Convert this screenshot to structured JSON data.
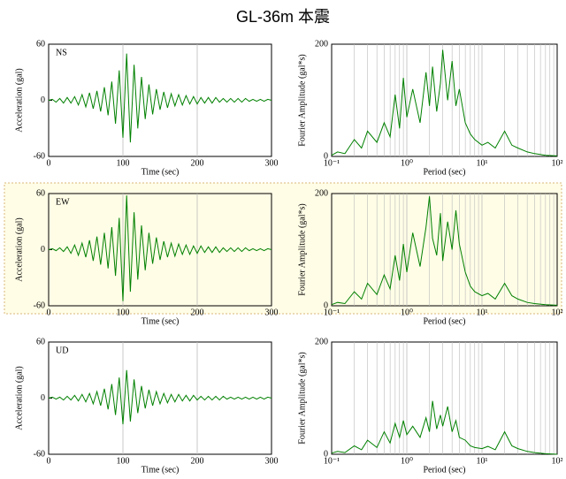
{
  "title": "GL-36m 本震",
  "chart_data": [
    {
      "type": "line",
      "tag": "NS",
      "xlabel": "Time (sec)",
      "ylabel": "Acceleration (gal)",
      "xlim": [
        0,
        300
      ],
      "xticks": [
        0,
        100,
        200,
        300
      ],
      "ylim": [
        -60,
        60
      ],
      "yticks": [
        -60,
        0,
        60
      ],
      "grid": true,
      "color": "#008000",
      "x": [
        0,
        5,
        10,
        15,
        20,
        25,
        30,
        35,
        40,
        45,
        50,
        55,
        60,
        65,
        70,
        75,
        80,
        85,
        90,
        95,
        100,
        105,
        110,
        115,
        120,
        125,
        130,
        135,
        140,
        145,
        150,
        155,
        160,
        165,
        170,
        175,
        180,
        185,
        190,
        195,
        200,
        205,
        210,
        215,
        220,
        225,
        230,
        235,
        240,
        245,
        250,
        255,
        260,
        265,
        270,
        275,
        280,
        285,
        290,
        295,
        300
      ],
      "values": [
        0,
        1,
        -2,
        2,
        -3,
        3,
        -3,
        4,
        -5,
        6,
        -7,
        8,
        -9,
        10,
        -12,
        14,
        -16,
        20,
        -25,
        32,
        -40,
        50,
        -45,
        38,
        -30,
        25,
        -20,
        17,
        -15,
        12,
        -10,
        9,
        -8,
        7,
        -6,
        6,
        -5,
        5,
        -4,
        4,
        -4,
        3,
        -3,
        3,
        -3,
        3,
        -2,
        2,
        -2,
        2,
        -2,
        2,
        -2,
        2,
        -1,
        1,
        -1,
        1,
        -1,
        1,
        0
      ]
    },
    {
      "type": "line",
      "xscale": "log",
      "xlabel": "Period (sec)",
      "ylabel": "Fourier Amplitude (gal*s)",
      "xlim": [
        0.1,
        100
      ],
      "xticks": [
        {
          "value": 0.1,
          "label": "10⁻¹"
        },
        {
          "value": 1,
          "label": "10⁰"
        },
        {
          "value": 10,
          "label": "10¹"
        },
        {
          "value": 100,
          "label": "10²"
        }
      ],
      "ylim": [
        0,
        200
      ],
      "yticks": [
        0,
        200
      ],
      "grid": true,
      "color": "#008000",
      "x": [
        0.1,
        0.12,
        0.15,
        0.2,
        0.25,
        0.3,
        0.4,
        0.5,
        0.6,
        0.7,
        0.8,
        0.9,
        1,
        1.2,
        1.5,
        1.8,
        2,
        2.2,
        2.5,
        2.8,
        3,
        3.5,
        4,
        4.5,
        5,
        6,
        7,
        8,
        10,
        12,
        15,
        20,
        25,
        30,
        40,
        50,
        70,
        100
      ],
      "values": [
        2,
        8,
        5,
        30,
        15,
        45,
        25,
        60,
        35,
        110,
        50,
        140,
        70,
        120,
        60,
        150,
        90,
        160,
        80,
        130,
        190,
        100,
        170,
        90,
        120,
        60,
        40,
        30,
        20,
        25,
        15,
        45,
        20,
        15,
        8,
        5,
        2,
        1
      ]
    },
    {
      "type": "line",
      "tag": "EW",
      "xlabel": "Time (sec)",
      "ylabel": "Acceleration (gal)",
      "xlim": [
        0,
        300
      ],
      "xticks": [
        0,
        100,
        200,
        300
      ],
      "ylim": [
        -60,
        60
      ],
      "yticks": [
        -60,
        0,
        60
      ],
      "grid": true,
      "color": "#008000",
      "x": [
        0,
        5,
        10,
        15,
        20,
        25,
        30,
        35,
        40,
        45,
        50,
        55,
        60,
        65,
        70,
        75,
        80,
        85,
        90,
        95,
        100,
        105,
        110,
        115,
        120,
        125,
        130,
        135,
        140,
        145,
        150,
        155,
        160,
        165,
        170,
        175,
        180,
        185,
        190,
        195,
        200,
        205,
        210,
        215,
        220,
        225,
        230,
        235,
        240,
        245,
        250,
        255,
        260,
        265,
        270,
        275,
        280,
        285,
        290,
        295,
        300
      ],
      "values": [
        0,
        1,
        -1,
        2,
        -2,
        3,
        -4,
        5,
        -6,
        7,
        -8,
        10,
        -12,
        14,
        -16,
        18,
        -20,
        24,
        -28,
        34,
        -55,
        58,
        -45,
        40,
        -32,
        26,
        -22,
        18,
        -15,
        13,
        -11,
        9,
        -8,
        7,
        -7,
        6,
        -5,
        5,
        -5,
        4,
        -4,
        4,
        -3,
        3,
        -3,
        3,
        -3,
        2,
        -2,
        2,
        -2,
        2,
        -2,
        2,
        -1,
        1,
        -1,
        1,
        -1,
        1,
        0
      ]
    },
    {
      "type": "line",
      "xscale": "log",
      "xlabel": "Period (sec)",
      "ylabel": "Fourier Amplitude (gal*s)",
      "xlim": [
        0.1,
        100
      ],
      "xticks": [
        {
          "value": 0.1,
          "label": "10⁻¹"
        },
        {
          "value": 1,
          "label": "10⁰"
        },
        {
          "value": 10,
          "label": "10¹"
        },
        {
          "value": 100,
          "label": "10²"
        }
      ],
      "ylim": [
        0,
        200
      ],
      "yticks": [
        0,
        200
      ],
      "grid": true,
      "color": "#008000",
      "x": [
        0.1,
        0.12,
        0.15,
        0.2,
        0.25,
        0.3,
        0.4,
        0.5,
        0.6,
        0.7,
        0.8,
        0.9,
        1,
        1.2,
        1.5,
        1.8,
        2,
        2.2,
        2.5,
        2.8,
        3,
        3.5,
        4,
        4.5,
        5,
        6,
        7,
        8,
        10,
        12,
        15,
        20,
        25,
        30,
        40,
        50,
        70,
        100
      ],
      "values": [
        2,
        6,
        4,
        25,
        12,
        40,
        20,
        55,
        30,
        90,
        45,
        110,
        60,
        130,
        70,
        140,
        195,
        120,
        90,
        165,
        80,
        150,
        100,
        170,
        110,
        60,
        35,
        25,
        18,
        22,
        12,
        40,
        18,
        12,
        6,
        4,
        2,
        1
      ]
    },
    {
      "type": "line",
      "tag": "UD",
      "xlabel": "Time (sec)",
      "ylabel": "Acceleration (gal)",
      "xlim": [
        0,
        300
      ],
      "xticks": [
        0,
        100,
        200,
        300
      ],
      "ylim": [
        -60,
        60
      ],
      "yticks": [
        -60,
        0,
        60
      ],
      "grid": true,
      "color": "#008000",
      "x": [
        0,
        5,
        10,
        15,
        20,
        25,
        30,
        35,
        40,
        45,
        50,
        55,
        60,
        65,
        70,
        75,
        80,
        85,
        90,
        95,
        100,
        105,
        110,
        115,
        120,
        125,
        130,
        135,
        140,
        145,
        150,
        155,
        160,
        165,
        170,
        175,
        180,
        185,
        190,
        195,
        200,
        205,
        210,
        215,
        220,
        225,
        230,
        235,
        240,
        245,
        250,
        255,
        260,
        265,
        270,
        275,
        280,
        285,
        290,
        295,
        300
      ],
      "values": [
        0,
        1,
        -1,
        1,
        -2,
        2,
        -2,
        3,
        -3,
        4,
        -4,
        5,
        -6,
        7,
        -8,
        10,
        -12,
        15,
        -18,
        22,
        -28,
        30,
        -25,
        20,
        -16,
        13,
        -11,
        9,
        -8,
        7,
        -6,
        5,
        -5,
        4,
        -4,
        4,
        -3,
        3,
        -3,
        3,
        -2,
        2,
        -2,
        2,
        -2,
        2,
        -2,
        2,
        -1,
        1,
        -1,
        1,
        -1,
        1,
        -1,
        1,
        -1,
        1,
        -1,
        1,
        0
      ]
    },
    {
      "type": "line",
      "xscale": "log",
      "xlabel": "Period (sec)",
      "ylabel": "Fourier Amplitude (gal*s)",
      "xlim": [
        0.1,
        100
      ],
      "xticks": [
        {
          "value": 0.1,
          "label": "10⁻¹"
        },
        {
          "value": 1,
          "label": "10⁰"
        },
        {
          "value": 10,
          "label": "10¹"
        },
        {
          "value": 100,
          "label": "10²"
        }
      ],
      "ylim": [
        0,
        200
      ],
      "yticks": [
        0,
        200
      ],
      "grid": true,
      "color": "#008000",
      "x": [
        0.1,
        0.12,
        0.15,
        0.2,
        0.25,
        0.3,
        0.4,
        0.5,
        0.6,
        0.7,
        0.8,
        0.9,
        1,
        1.2,
        1.5,
        1.8,
        2,
        2.2,
        2.5,
        2.8,
        3,
        3.5,
        4,
        4.5,
        5,
        6,
        7,
        8,
        10,
        12,
        15,
        20,
        25,
        30,
        40,
        50,
        70,
        100
      ],
      "values": [
        2,
        5,
        3,
        15,
        8,
        25,
        12,
        40,
        20,
        55,
        30,
        60,
        35,
        50,
        30,
        65,
        40,
        95,
        45,
        70,
        50,
        85,
        40,
        60,
        30,
        25,
        15,
        12,
        10,
        14,
        8,
        40,
        15,
        10,
        5,
        3,
        1,
        0
      ]
    }
  ]
}
